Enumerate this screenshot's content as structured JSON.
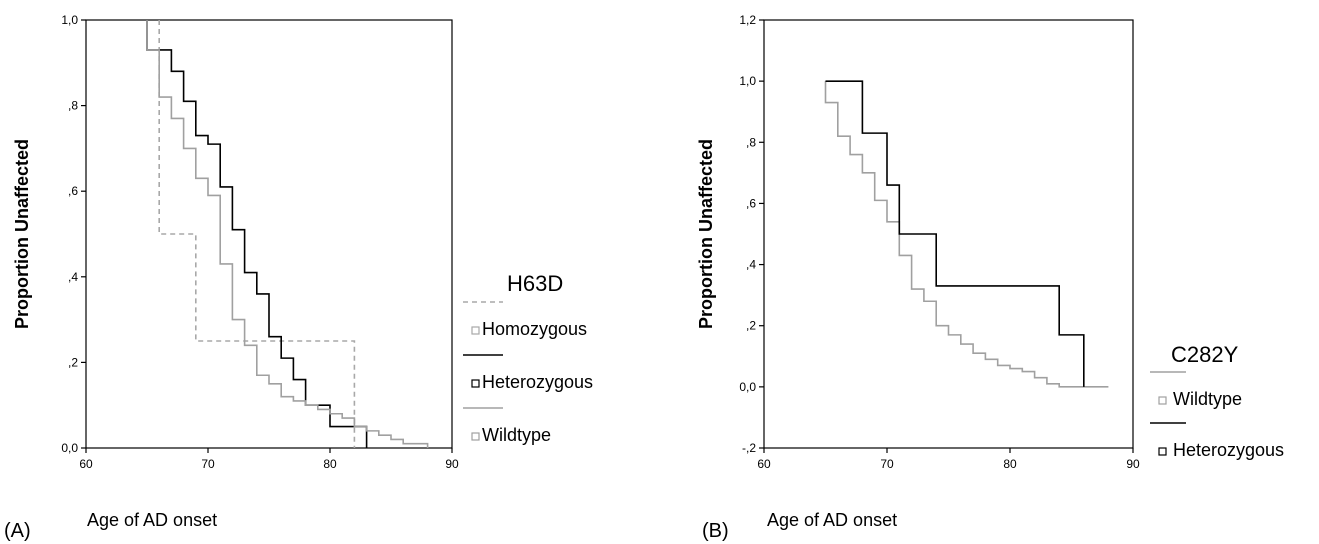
{
  "chart_data": [
    {
      "type": "line",
      "step": true,
      "panel_label": "(A)",
      "xlabel": "Age of AD onset",
      "ylabel": "Proportion Unaffected",
      "xlim": [
        60,
        90
      ],
      "ylim": [
        0,
        1
      ],
      "xticks": [
        60,
        70,
        80,
        90
      ],
      "xtick_labels": [
        "60",
        "70",
        "80",
        "90"
      ],
      "yticks": [
        0,
        0.2,
        0.4,
        0.6,
        0.8,
        1.0
      ],
      "ytick_labels": [
        "0,0",
        ",2",
        ",4",
        ",6",
        ",8",
        "1,0"
      ],
      "grid": false,
      "legend_title": "H63D",
      "legend_position": "right",
      "series": [
        {
          "name": "Homozygous",
          "color": "#a8a8a8",
          "dash": "5,4",
          "x": [
            66,
            69,
            82
          ],
          "y": [
            0.5,
            0.25,
            0.0
          ],
          "start": 1.0,
          "end_x": 82
        },
        {
          "name": "Heterozygous",
          "color": "#000000",
          "dash": "",
          "x": [
            65,
            67,
            68,
            69,
            70,
            71,
            72,
            73,
            74,
            75,
            76,
            77,
            78,
            80,
            83
          ],
          "y": [
            0.93,
            0.88,
            0.81,
            0.73,
            0.71,
            0.61,
            0.51,
            0.41,
            0.36,
            0.26,
            0.21,
            0.16,
            0.1,
            0.05,
            0.0
          ],
          "start": 1.0,
          "end_x": 83
        },
        {
          "name": "Wildtype",
          "color": "#a0a0a0",
          "dash": "",
          "x": [
            65,
            66,
            67,
            68,
            69,
            70,
            71,
            72,
            73,
            74,
            75,
            76,
            77,
            78,
            79,
            80,
            81,
            82,
            83,
            84,
            85,
            86,
            88
          ],
          "y": [
            0.93,
            0.82,
            0.77,
            0.7,
            0.63,
            0.59,
            0.43,
            0.3,
            0.24,
            0.17,
            0.15,
            0.12,
            0.11,
            0.1,
            0.09,
            0.08,
            0.07,
            0.05,
            0.04,
            0.03,
            0.02,
            0.01,
            0.0
          ],
          "start": 1.0,
          "end_x": 88
        }
      ]
    },
    {
      "type": "line",
      "step": true,
      "panel_label": "(B)",
      "xlabel": "Age of AD onset",
      "ylabel": "Proportion Unaffected",
      "xlim": [
        60,
        90
      ],
      "ylim": [
        -0.2,
        1.2
      ],
      "xticks": [
        60,
        70,
        80,
        90
      ],
      "xtick_labels": [
        "60",
        "70",
        "80",
        "90"
      ],
      "yticks": [
        -0.2,
        0,
        0.2,
        0.4,
        0.6,
        0.8,
        1.0,
        1.2
      ],
      "ytick_labels": [
        "-,2",
        "0,0",
        ",2",
        ",4",
        ",6",
        ",8",
        "1,0",
        "1,2"
      ],
      "grid": false,
      "legend_title": "C282Y",
      "legend_position": "right",
      "series": [
        {
          "name": "Wildtype",
          "color": "#a0a0a0",
          "dash": "",
          "x": [
            65,
            66,
            67,
            68,
            69,
            70,
            71,
            72,
            73,
            74,
            75,
            76,
            77,
            78,
            79,
            80,
            81,
            82,
            83,
            84,
            88
          ],
          "y": [
            0.93,
            0.82,
            0.76,
            0.7,
            0.61,
            0.54,
            0.43,
            0.32,
            0.28,
            0.2,
            0.17,
            0.14,
            0.11,
            0.09,
            0.07,
            0.06,
            0.05,
            0.03,
            0.01,
            0.0,
            0.0
          ],
          "start": 1.0,
          "start_x": 65,
          "end_x": 88
        },
        {
          "name": "Heterozygous",
          "color": "#000000",
          "dash": "",
          "x": [
            68,
            70,
            71,
            74,
            84,
            86
          ],
          "y": [
            0.83,
            0.66,
            0.5,
            0.33,
            0.17,
            0.0
          ],
          "start": 1.0,
          "start_x": 65,
          "end_x": 86
        }
      ]
    }
  ]
}
